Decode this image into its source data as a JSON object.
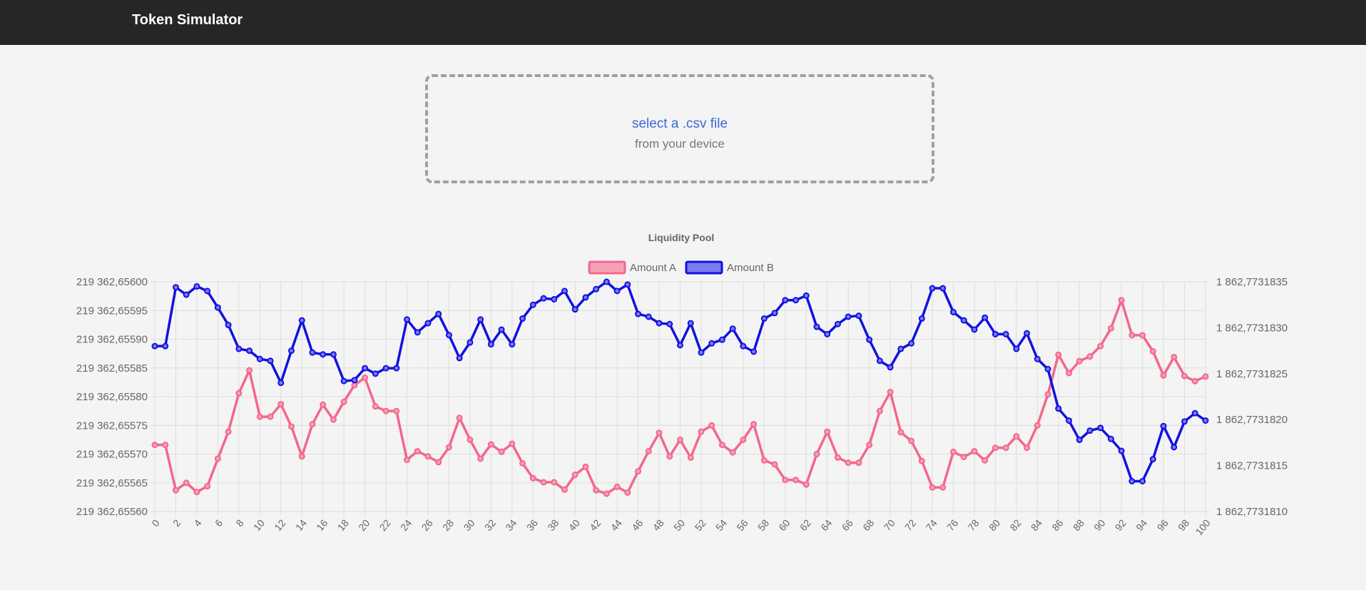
{
  "app": {
    "title": "Token Simulator"
  },
  "upload": {
    "link_text": "select a .csv file",
    "sub_text": "from your device"
  },
  "colors": {
    "navbar": "#262626",
    "amount_a": "#f4678b",
    "amount_a_fill": "#f5a2b6",
    "amount_b": "#1111e0",
    "amount_b_fill": "#7b7bf2"
  },
  "chart_data": {
    "type": "line",
    "title": "Liquidity Pool",
    "legend_position": "top",
    "grid": true,
    "x": [
      0,
      1,
      2,
      3,
      4,
      5,
      6,
      7,
      8,
      9,
      10,
      11,
      12,
      13,
      14,
      15,
      16,
      17,
      18,
      19,
      20,
      21,
      22,
      23,
      24,
      25,
      26,
      27,
      28,
      29,
      30,
      31,
      32,
      33,
      34,
      35,
      36,
      37,
      38,
      39,
      40,
      41,
      42,
      43,
      44,
      45,
      46,
      47,
      48,
      49,
      50,
      51,
      52,
      53,
      54,
      55,
      56,
      57,
      58,
      59,
      60,
      61,
      62,
      63,
      64,
      65,
      66,
      67,
      68,
      69,
      70,
      71,
      72,
      73,
      74,
      75,
      76,
      77,
      78,
      79,
      80,
      81,
      82,
      83,
      84,
      85,
      86,
      87,
      88,
      89,
      90,
      91,
      92,
      93,
      94,
      95,
      96,
      97,
      98,
      99,
      100
    ],
    "x_tick_labels": [
      "0",
      "2",
      "4",
      "6",
      "8",
      "10",
      "12",
      "14",
      "16",
      "18",
      "20",
      "22",
      "24",
      "26",
      "28",
      "30",
      "32",
      "34",
      "36",
      "38",
      "40",
      "42",
      "44",
      "46",
      "48",
      "50",
      "52",
      "54",
      "56",
      "58",
      "60",
      "62",
      "64",
      "66",
      "68",
      "70",
      "72",
      "74",
      "76",
      "78",
      "80",
      "82",
      "84",
      "86",
      "88",
      "90",
      "92",
      "94",
      "96",
      "98",
      "100"
    ],
    "y_left": {
      "min": 219362.6556,
      "max": 219362.656,
      "tick_labels": [
        "219 362,65600",
        "219 362,65595",
        "219 362,65590",
        "219 362,65585",
        "219 362,65580",
        "219 362,65575",
        "219 362,65570",
        "219 362,65565",
        "219 362,65560"
      ]
    },
    "y_right": {
      "min": 1862.773181,
      "max": 1862.7731835,
      "tick_labels": [
        "1 862,7731835",
        "1 862,7731830",
        "1 862,7731825",
        "1 862,7731820",
        "1 862,7731815",
        "1 862,7731810"
      ]
    },
    "series": [
      {
        "name": "Amount A",
        "axis": "left",
        "values": [
          219362.655716,
          219362.655716,
          219362.655637,
          219362.65565,
          219362.655634,
          219362.655644,
          219362.655692,
          219362.655739,
          219362.655806,
          219362.655846,
          219362.655765,
          219362.655765,
          219362.655787,
          219362.655748,
          219362.655696,
          219362.655752,
          219362.655786,
          219362.65576,
          219362.655791,
          219362.65582,
          219362.655833,
          219362.655783,
          219362.655775,
          219362.655775,
          219362.65569,
          219362.655705,
          219362.655696,
          219362.655686,
          219362.655712,
          219362.655763,
          219362.655725,
          219362.655692,
          219362.655717,
          219362.655704,
          219362.655718,
          219362.655684,
          219362.655658,
          219362.655651,
          219362.655651,
          219362.655638,
          219362.655664,
          219362.655678,
          219362.655637,
          219362.655631,
          219362.655643,
          219362.655633,
          219362.65567,
          219362.655705,
          219362.655737,
          219362.655696,
          219362.655725,
          219362.655694,
          219362.655739,
          219362.65575,
          219362.655716,
          219362.655703,
          219362.655725,
          219362.655752,
          219362.655689,
          219362.655682,
          219362.655655,
          219362.655655,
          219362.655647,
          219362.6557,
          219362.655739,
          219362.655694,
          219362.655685,
          219362.655685,
          219362.655716,
          219362.655775,
          219362.655808,
          219362.655738,
          219362.655723,
          219362.655688,
          219362.655642,
          219362.655642,
          219362.655704,
          219362.655695,
          219362.655705,
          219362.655689,
          219362.655711,
          219362.655711,
          219362.655731,
          219362.655711,
          219362.65575,
          219362.655804,
          219362.655873,
          219362.655841,
          219362.655862,
          219362.65587,
          219362.655888,
          219362.655919,
          219362.655968,
          219362.655907,
          219362.655907,
          219362.655879,
          219362.655837,
          219362.655869,
          219362.655836,
          219362.655827,
          219362.655835
        ]
      },
      {
        "name": "Amount B",
        "axis": "right",
        "values": [
          1862.7731828,
          1862.7731828,
          1862.77318344,
          1862.77318336,
          1862.77318345,
          1862.7731834,
          1862.77318322,
          1862.77318303,
          1862.77318277,
          1862.77318275,
          1862.77318266,
          1862.77318264,
          1862.7731824,
          1862.77318275,
          1862.77318308,
          1862.77318273,
          1862.77318271,
          1862.77318271,
          1862.77318242,
          1862.77318243,
          1862.77318256,
          1862.7731825,
          1862.77318256,
          1862.77318256,
          1862.77318309,
          1862.77318295,
          1862.77318305,
          1862.77318315,
          1862.77318292,
          1862.77318267,
          1862.77318284,
          1862.77318309,
          1862.77318282,
          1862.77318298,
          1862.77318282,
          1862.7731831,
          1862.77318325,
          1862.77318332,
          1862.77318331,
          1862.7731834,
          1862.7731832,
          1862.77318333,
          1862.77318342,
          1862.7731835,
          1862.7731834,
          1862.77318347,
          1862.77318315,
          1862.77318312,
          1862.77318305,
          1862.77318304,
          1862.77318281,
          1862.77318305,
          1862.77318273,
          1862.77318283,
          1862.77318287,
          1862.77318299,
          1862.7731828,
          1862.77318274,
          1862.7731831,
          1862.77318316,
          1862.7731833,
          1862.7731833,
          1862.77318335,
          1862.77318301,
          1862.77318293,
          1862.77318304,
          1862.77318312,
          1862.77318313,
          1862.77318287,
          1862.77318264,
          1862.77318257,
          1862.77318277,
          1862.77318283,
          1862.7731831,
          1862.77318343,
          1862.77318343,
          1862.77318317,
          1862.77318308,
          1862.77318298,
          1862.77318311,
          1862.77318293,
          1862.77318293,
          1862.77318277,
          1862.77318294,
          1862.77318266,
          1862.77318255,
          1862.77318212,
          1862.77318199,
          1862.77318178,
          1862.77318188,
          1862.77318191,
          1862.77318179,
          1862.77318166,
          1862.77318133,
          1862.77318133,
          1862.77318157,
          1862.77318193,
          1862.7731817,
          1862.77318198,
          1862.77318207,
          1862.77318199
        ]
      }
    ]
  }
}
